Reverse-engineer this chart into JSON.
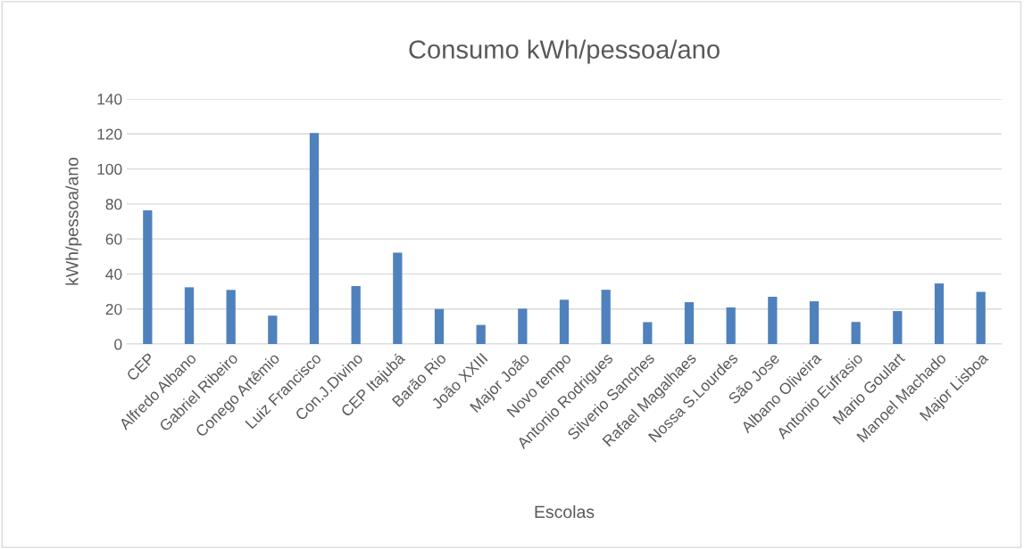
{
  "chart_data": {
    "type": "bar",
    "title": "Consumo kWh/pessoa/ano",
    "xlabel": "Escolas",
    "ylabel": "kWh/pessoa/ano",
    "categories": [
      "CEP",
      "Alfredo Albano",
      "Gabriel Ribeiro",
      "Conego Artêmio",
      "Luiz Francisco",
      "Con.J.Divino",
      "CEP Itajubá",
      "Barão Rio",
      "João XXIII",
      "Major João",
      "Novo tempo",
      "Antonio Rodrigues",
      "Silverio Sanches",
      "Rafael Magalhaes",
      "Nossa S.Lourdes",
      "São Jose",
      "Albano Oliveira",
      "Antonio Eufrasio",
      "Mario Goulart",
      "Manoel Machado",
      "Major Lisboa"
    ],
    "values": [
      76.4,
      32.4,
      30.9,
      16.2,
      120.5,
      33.1,
      52.2,
      20.0,
      10.9,
      20.2,
      25.3,
      31.0,
      12.5,
      23.9,
      20.9,
      27.0,
      24.4,
      12.6,
      18.8,
      34.6,
      29.8
    ],
    "color": "#4f81bd",
    "ylim": [
      0,
      140
    ],
    "yticks": [
      0,
      20,
      40,
      60,
      80,
      100,
      120,
      140
    ],
    "grid": "y",
    "legend": false
  }
}
